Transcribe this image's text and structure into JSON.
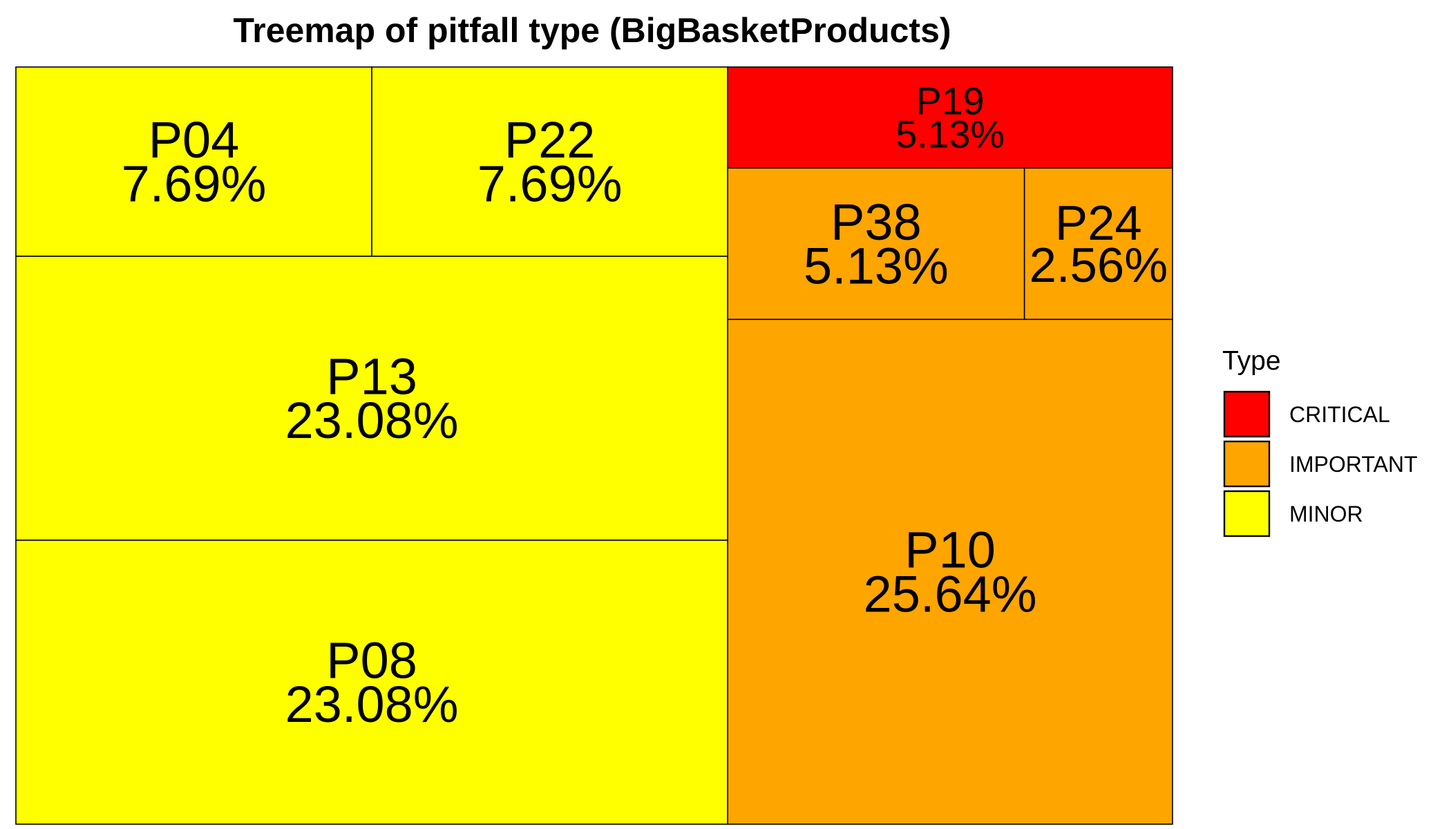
{
  "chart_data": {
    "type": "treemap",
    "title": "Treemap of pitfall type (BigBasketProducts)",
    "legend": {
      "title": "Type",
      "placement": "right",
      "entries": [
        {
          "label": "CRITICAL",
          "color": "#ff0000"
        },
        {
          "label": "IMPORTANT",
          "color": "#ffa500"
        },
        {
          "label": "MINOR",
          "color": "#ffff00"
        }
      ]
    },
    "tiles": [
      {
        "label": "P04",
        "value_label": "7.69%",
        "value": 7.69,
        "type": "MINOR"
      },
      {
        "label": "P22",
        "value_label": "7.69%",
        "value": 7.69,
        "type": "MINOR"
      },
      {
        "label": "P13",
        "value_label": "23.08%",
        "value": 23.08,
        "type": "MINOR"
      },
      {
        "label": "P08",
        "value_label": "23.08%",
        "value": 23.08,
        "type": "MINOR"
      },
      {
        "label": "P19",
        "value_label": "5.13%",
        "value": 5.13,
        "type": "CRITICAL"
      },
      {
        "label": "P38",
        "value_label": "5.13%",
        "value": 5.13,
        "type": "IMPORTANT"
      },
      {
        "label": "P24",
        "value_label": "2.56%",
        "value": 2.56,
        "type": "IMPORTANT"
      },
      {
        "label": "P10",
        "value_label": "25.64%",
        "value": 25.64,
        "type": "IMPORTANT"
      }
    ]
  }
}
